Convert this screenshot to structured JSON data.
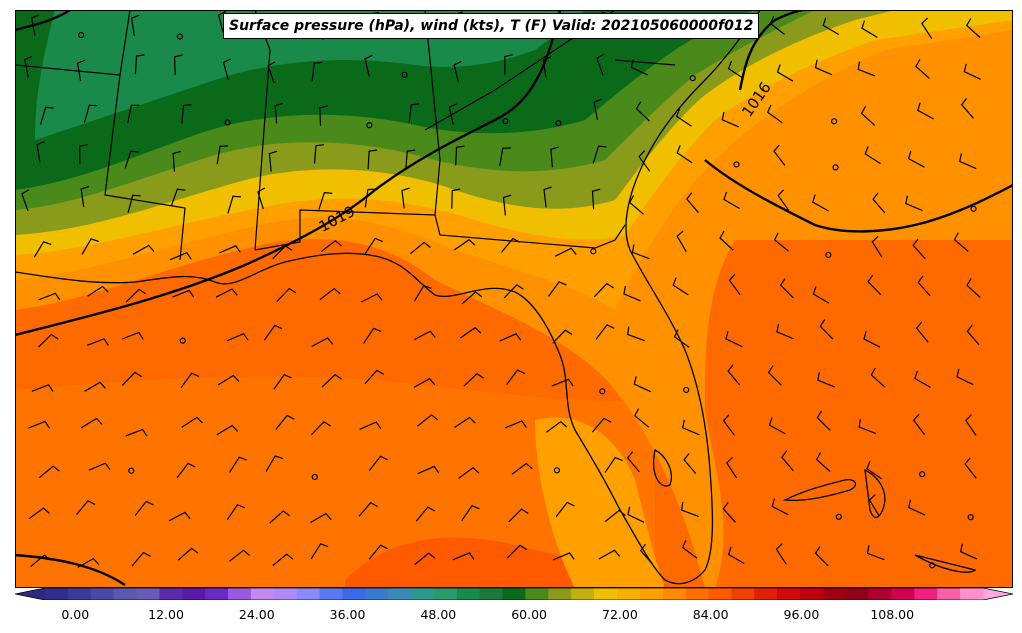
{
  "title": "Surface pressure (hPa), wind (kts), T (F) Valid: 202105060000f012",
  "isobars": [
    {
      "label": "1019"
    },
    {
      "label": "1016"
    }
  ],
  "colorbar": {
    "min": -4,
    "max": 120,
    "ticks": [
      "0.00",
      "12.00",
      "24.00",
      "36.00",
      "48.00",
      "60.00",
      "72.00",
      "84.00",
      "96.00",
      "108.00"
    ],
    "colors": [
      "#2e2e8e",
      "#3a3a9a",
      "#4a4aa6",
      "#5a5aae",
      "#6a5ab8",
      "#5a2aa8",
      "#5a1aa8",
      "#6a2ac8",
      "#9a5ae0",
      "#c08af0",
      "#b08af8",
      "#8a8af8",
      "#5a7af0",
      "#3a6ae8",
      "#3a7ad0",
      "#3a8ab8",
      "#2a9a8a",
      "#2a9a6a",
      "#1a8a4a",
      "#1a7a3a",
      "#0a6a1a",
      "#4a8a1a",
      "#8a9a1a",
      "#c0b010",
      "#f0c000",
      "#f8b000",
      "#ffa000",
      "#ff8a00",
      "#ff7000",
      "#ff5a00",
      "#f04000",
      "#e02000",
      "#d00a0a",
      "#c00010",
      "#a00010",
      "#900018",
      "#b00030",
      "#d00050",
      "#f02080",
      "#f860a8",
      "#ff90d0"
    ],
    "extend_min_color": "#2a2a80",
    "extend_max_color": "#ffa8e0"
  }
}
